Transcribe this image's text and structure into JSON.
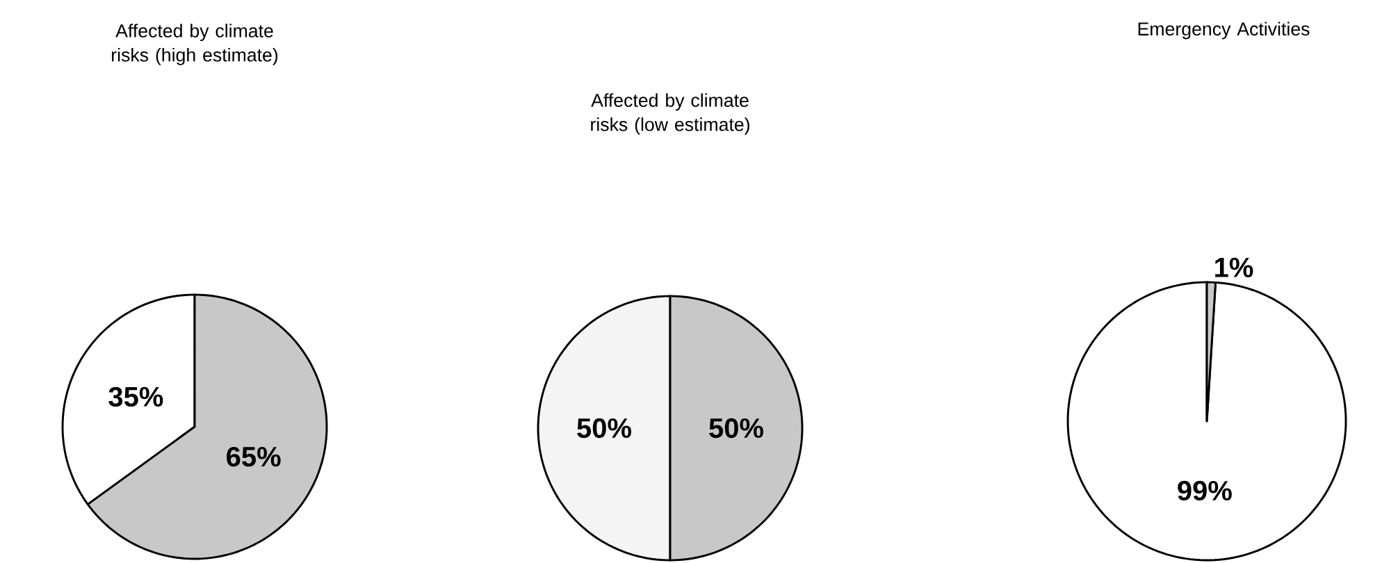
{
  "chart_data": [
    {
      "type": "pie",
      "title": "Affected by climate risks (high estimate)",
      "categories": [
        null,
        null
      ],
      "values": [
        65,
        35
      ],
      "colors": [
        "#c8c8c8",
        "#ffffff"
      ],
      "value_labels": [
        "65%",
        "35%"
      ]
    },
    {
      "type": "pie",
      "title": "Affected by climate risks (low estimate)",
      "categories": [
        null,
        null
      ],
      "values": [
        50,
        50
      ],
      "colors": [
        "#c8c8c8",
        "#f4f4f4"
      ],
      "value_labels": [
        "50%",
        "50%"
      ]
    },
    {
      "type": "pie",
      "title": "Emergency Activities",
      "categories": [
        null,
        null
      ],
      "values": [
        1,
        99
      ],
      "colors": [
        "#c8c8c8",
        "#ffffff"
      ],
      "value_labels": [
        "1%",
        "99%"
      ]
    }
  ]
}
